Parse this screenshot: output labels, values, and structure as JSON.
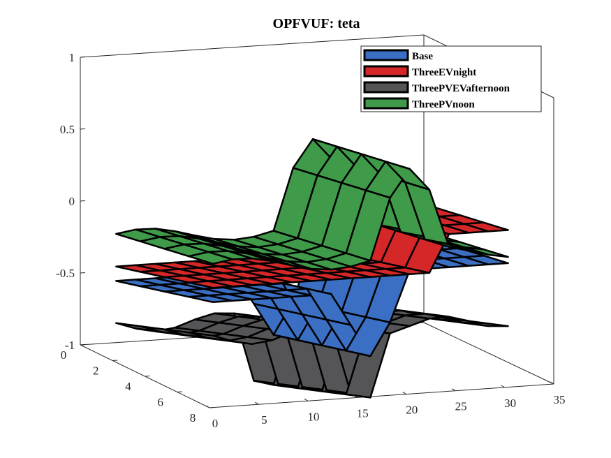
{
  "chart_data": {
    "type": "surface",
    "title": "OPFVUF: teta",
    "xlabel": "",
    "ylabel": "",
    "zlabel": "",
    "x_axis": {
      "ticks": [
        0,
        5,
        10,
        15,
        20,
        25,
        30,
        35
      ],
      "range": [
        0,
        35
      ]
    },
    "y_axis": {
      "ticks": [
        0,
        2,
        4,
        6,
        8
      ],
      "range": [
        0,
        8
      ]
    },
    "z_axis": {
      "ticks": [
        "-1",
        "-0.5",
        "0",
        "0.5",
        "1"
      ],
      "values": [
        -1,
        -0.5,
        0,
        0.5,
        1
      ],
      "range": [
        -1,
        1
      ]
    },
    "grid": false,
    "legend_position": "top-right",
    "series": [
      {
        "name": "Base",
        "color": "#3a6fc4"
      },
      {
        "name": "ThreeEVnight",
        "color": "#d62728"
      },
      {
        "name": "ThreePVEVafternoon",
        "color": "#555558"
      },
      {
        "name": "ThreePVnoon",
        "color": "#3f9a4a"
      }
    ]
  }
}
